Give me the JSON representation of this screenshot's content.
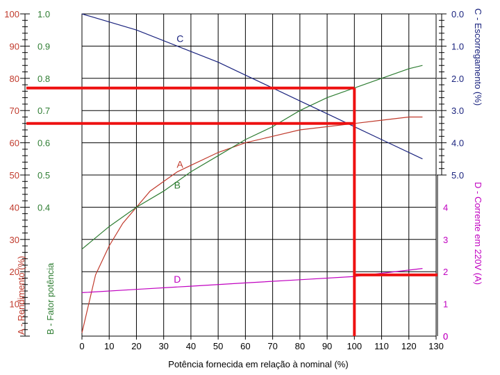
{
  "chart_data": {
    "type": "line",
    "title": "",
    "xlabel": "Potência fornecida em relação à nominal (%)",
    "xlim": [
      0,
      130
    ],
    "x_ticks": [
      "0",
      "10",
      "20",
      "30",
      "40",
      "50",
      "60",
      "70",
      "80",
      "90",
      "100",
      "110",
      "120",
      "130"
    ],
    "axes": {
      "left_A": {
        "label": "A - Rendimento (%)",
        "range": [
          0,
          100
        ],
        "ticks": [
          "10",
          "20",
          "30",
          "40",
          "50",
          "60",
          "70",
          "80",
          "90",
          "100"
        ],
        "color": "#c0392b"
      },
      "left_B": {
        "label": "B - Fator potência",
        "range": [
          0,
          1
        ],
        "ticks": [
          "0.4",
          "0.5",
          "0.6",
          "0.7",
          "0.8",
          "0.9",
          "1.0"
        ],
        "color": "#2e7d32"
      },
      "right_C": {
        "label": "C - Escorregamento (%)",
        "range": [
          0,
          5
        ],
        "ticks": [
          "0.0",
          "1.0",
          "2.0",
          "3.0",
          "4.0",
          "5.0"
        ],
        "color": "#1a237e"
      },
      "right_D": {
        "label": "D - Corrente em 220V (A)",
        "range": [
          0,
          5
        ],
        "ticks": [
          "0",
          "1",
          "2",
          "3",
          "4"
        ],
        "color": "#c000c0"
      }
    },
    "series": [
      {
        "name": "A",
        "color": "#c0392b",
        "x": [
          0,
          5,
          10,
          15,
          20,
          25,
          30,
          35,
          40,
          50,
          60,
          70,
          80,
          90,
          100,
          110,
          120,
          125
        ],
        "y": [
          1,
          19,
          28,
          35,
          40,
          45,
          48,
          51,
          53,
          57,
          60,
          62,
          64,
          65,
          66,
          67,
          68,
          68
        ]
      },
      {
        "name": "B",
        "color": "#2e7d32",
        "x": [
          0,
          10,
          20,
          30,
          40,
          50,
          60,
          70,
          80,
          90,
          100,
          110,
          120,
          125
        ],
        "y": [
          0.27,
          0.34,
          0.4,
          0.45,
          0.51,
          0.56,
          0.61,
          0.65,
          0.7,
          0.74,
          0.77,
          0.8,
          0.83,
          0.84
        ]
      },
      {
        "name": "C",
        "color": "#1a237e",
        "x": [
          0,
          20,
          35,
          50,
          60,
          70,
          80,
          90,
          100,
          110,
          125
        ],
        "y": [
          0.0,
          0.5,
          1.0,
          1.5,
          1.9,
          2.3,
          2.7,
          3.1,
          3.5,
          3.9,
          4.5
        ]
      },
      {
        "name": "D",
        "color": "#c000c0",
        "x": [
          0,
          20,
          40,
          60,
          80,
          100,
          110,
          125
        ],
        "y": [
          1.35,
          1.45,
          1.55,
          1.65,
          1.75,
          1.85,
          1.95,
          2.1
        ]
      }
    ],
    "highlight_lines": {
      "color": "#ee1111",
      "vertical_at_x": 100,
      "horizontal_A": 66,
      "horizontal_B": 0.77,
      "horizontal_D": 1.9
    },
    "grid": true
  }
}
